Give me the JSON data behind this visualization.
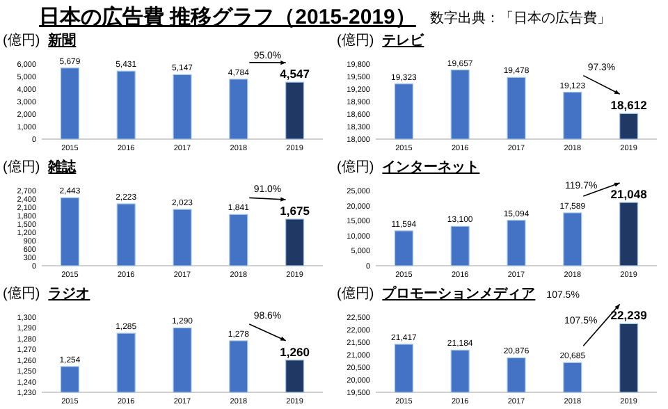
{
  "chart_data": [
    {
      "type": "other",
      "title": "日本の広告費 推移グラフ（2015-2019）",
      "annotations": [
        "数字出典：「日本の広告費」"
      ]
    },
    {
      "type": "bar",
      "title": "新聞",
      "ylabel": "(億円)",
      "categories": [
        "2015",
        "2016",
        "2017",
        "2018",
        "2019"
      ],
      "values": [
        5679,
        5431,
        5147,
        4784,
        4547
      ],
      "colors": [
        "#4472c4",
        "#4472c4",
        "#4472c4",
        "#4472c4",
        "#1f3864"
      ],
      "ylim": [
        0,
        6000
      ],
      "yticks": [
        {
          "value": 0,
          "label": "0"
        },
        {
          "value": 1000,
          "label": "1,000"
        },
        {
          "value": 2000,
          "label": "2,000"
        },
        {
          "value": 3000,
          "label": "3,000"
        },
        {
          "value": 4000,
          "label": "4,000"
        },
        {
          "value": 5000,
          "label": "5,000"
        },
        {
          "value": 6000,
          "label": "6,000"
        }
      ],
      "value_labels": [
        "5,679",
        "5,431",
        "5,147",
        "4,784",
        "4,547"
      ],
      "annotations": [
        "95.0%"
      ]
    },
    {
      "type": "bar",
      "title": "テレビ",
      "ylabel": "(億円)",
      "categories": [
        "2015",
        "2016",
        "2017",
        "2018",
        "2019"
      ],
      "values": [
        19323,
        19657,
        19478,
        19123,
        18612
      ],
      "colors": [
        "#4472c4",
        "#4472c4",
        "#4472c4",
        "#4472c4",
        "#1f3864"
      ],
      "ylim": [
        18000,
        19800
      ],
      "yticks": [
        {
          "value": 18000,
          "label": "18,000"
        },
        {
          "value": 18300,
          "label": "18,300"
        },
        {
          "value": 18600,
          "label": "18,600"
        },
        {
          "value": 18900,
          "label": "18,900"
        },
        {
          "value": 19200,
          "label": "19,200"
        },
        {
          "value": 19500,
          "label": "19,500"
        },
        {
          "value": 19800,
          "label": "19,800"
        }
      ],
      "value_labels": [
        "19,323",
        "19,657",
        "19,478",
        "19,123",
        "18,612"
      ],
      "annotations": [
        "97.3%"
      ]
    },
    {
      "type": "bar",
      "title": "雑誌",
      "ylabel": "(億円)",
      "categories": [
        "2015",
        "2016",
        "2017",
        "2018",
        "2019"
      ],
      "values": [
        2443,
        2223,
        2023,
        1841,
        1675
      ],
      "colors": [
        "#4472c4",
        "#4472c4",
        "#4472c4",
        "#4472c4",
        "#1f3864"
      ],
      "ylim": [
        0,
        2700
      ],
      "yticks": [
        {
          "value": 0,
          "label": "0"
        },
        {
          "value": 300,
          "label": "300"
        },
        {
          "value": 600,
          "label": "600"
        },
        {
          "value": 900,
          "label": "900"
        },
        {
          "value": 1200,
          "label": "1,200"
        },
        {
          "value": 1500,
          "label": "1,500"
        },
        {
          "value": 1800,
          "label": "1,800"
        },
        {
          "value": 2100,
          "label": "2,100"
        },
        {
          "value": 2400,
          "label": "2,400"
        },
        {
          "value": 2700,
          "label": "2,700"
        }
      ],
      "value_labels": [
        "2,443",
        "2,223",
        "2,023",
        "1,841",
        "1,675"
      ],
      "annotations": [
        "91.0%"
      ]
    },
    {
      "type": "bar",
      "title": "インターネット",
      "ylabel": "(億円)",
      "categories": [
        "2015",
        "2016",
        "2017",
        "2018",
        "2019"
      ],
      "values": [
        11594,
        13100,
        15094,
        17589,
        21048
      ],
      "colors": [
        "#4472c4",
        "#4472c4",
        "#4472c4",
        "#4472c4",
        "#1f3864"
      ],
      "ylim": [
        0,
        25000
      ],
      "yticks": [
        {
          "value": 0,
          "label": "0"
        },
        {
          "value": 5000,
          "label": "5,000"
        },
        {
          "value": 10000,
          "label": "10,000"
        },
        {
          "value": 15000,
          "label": "15,000"
        },
        {
          "value": 20000,
          "label": "20,000"
        },
        {
          "value": 25000,
          "label": "25,000"
        }
      ],
      "value_labels": [
        "11,594",
        "13,100",
        "15,094",
        "17,589",
        "21,048"
      ],
      "annotations": [
        "119.7%"
      ]
    },
    {
      "type": "bar",
      "title": "ラジオ",
      "ylabel": "(億円)",
      "categories": [
        "2015",
        "2016",
        "2017",
        "2018",
        "2019"
      ],
      "values": [
        1254,
        1285,
        1290,
        1278,
        1260
      ],
      "colors": [
        "#4472c4",
        "#4472c4",
        "#4472c4",
        "#4472c4",
        "#1f3864"
      ],
      "ylim": [
        1230,
        1300
      ],
      "yticks": [
        {
          "value": 1230,
          "label": "1,230"
        },
        {
          "value": 1240,
          "label": "1,240"
        },
        {
          "value": 1250,
          "label": "1,250"
        },
        {
          "value": 1260,
          "label": "1,260"
        },
        {
          "value": 1270,
          "label": "1,270"
        },
        {
          "value": 1280,
          "label": "1,280"
        },
        {
          "value": 1290,
          "label": "1,290"
        },
        {
          "value": 1300,
          "label": "1,300"
        }
      ],
      "value_labels": [
        "1,254",
        "1,285",
        "1,290",
        "1,278",
        "1,260"
      ],
      "annotations": [
        "98.6%"
      ]
    },
    {
      "type": "bar",
      "title": "プロモーションメディア",
      "ylabel": "(億円)",
      "categories": [
        "2015",
        "2016",
        "2017",
        "2018",
        "2019"
      ],
      "values": [
        21417,
        21184,
        20876,
        20685,
        22239
      ],
      "colors": [
        "#4472c4",
        "#4472c4",
        "#4472c4",
        "#4472c4",
        "#1f3864"
      ],
      "ylim": [
        19500,
        22500
      ],
      "yticks": [
        {
          "value": 19500,
          "label": "19,500"
        },
        {
          "value": 20000,
          "label": "20,000"
        },
        {
          "value": 20500,
          "label": "20,500"
        },
        {
          "value": 21000,
          "label": "21,000"
        },
        {
          "value": 21500,
          "label": "21,500"
        },
        {
          "value": 22000,
          "label": "22,000"
        },
        {
          "value": 22500,
          "label": "22,500"
        }
      ],
      "value_labels": [
        "21,417",
        "21,184",
        "20,876",
        "20,685",
        "22,239"
      ],
      "annotations": [
        "107.5%",
        "107.5%"
      ]
    }
  ]
}
